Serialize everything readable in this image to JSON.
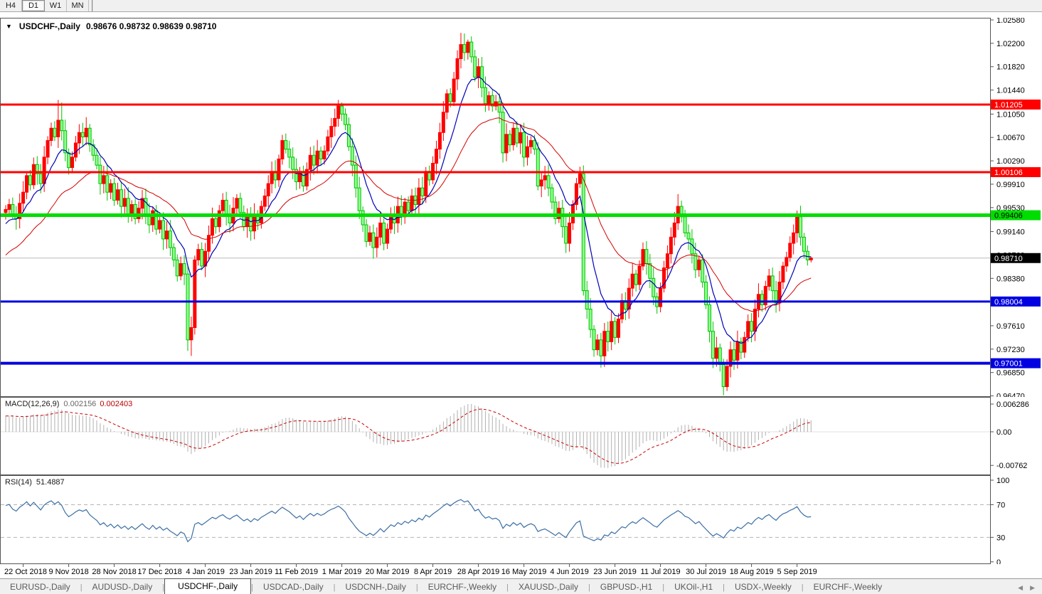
{
  "toolbar": {
    "timeframes": [
      "H4",
      "D1",
      "W1",
      "MN"
    ],
    "active_timeframe": "D1"
  },
  "chart": {
    "symbol_title": "USDCHF-,Daily",
    "ohlc": "0.98676 0.98732 0.98639 0.98710",
    "colors": {
      "bull_body": "#ff0000",
      "bear_fill": "#8cff8c",
      "bear_border": "#00c400",
      "ma_fast": "#0000b8",
      "ma_slow": "#d40000",
      "level_red": "#ff0000",
      "level_green": "#00dd00",
      "level_blue": "#0000e0",
      "price_line_gray": "#bbbbbb",
      "macd_hist": "#b0b0b0",
      "macd_signal": "#cc0000",
      "rsi_line": "#3a6ea5"
    },
    "price_axis_ticks": [
      "1.02580",
      "1.02200",
      "1.01820",
      "1.01440",
      "1.01050",
      "1.00670",
      "1.00290",
      "0.99910",
      "0.99530",
      "0.99140",
      "0.98760",
      "0.98380",
      "0.98000",
      "0.97610",
      "0.97230",
      "0.96850",
      "0.96470"
    ],
    "levels": [
      {
        "value": 1.01205,
        "label": "1.01205",
        "color": "red",
        "thickness": 3
      },
      {
        "value": 1.00106,
        "label": "1.00106",
        "color": "red",
        "thickness": 3
      },
      {
        "value": 0.99406,
        "label": "0.99406",
        "color": "green",
        "thickness": 5
      },
      {
        "value": 0.98004,
        "label": "0.98004",
        "color": "blue",
        "thickness": 3
      },
      {
        "value": 0.97001,
        "label": "0.97001",
        "color": "blue",
        "thickness": 4
      }
    ],
    "current_price": {
      "value": 0.9871,
      "label": "0.98710"
    },
    "date_labels": [
      "22 Oct 2018",
      "9 Nov 2018",
      "28 Nov 2018",
      "17 Dec 2018",
      "4 Jan 2019",
      "23 Jan 2019",
      "11 Feb 2019",
      "1 Mar 2019",
      "20 Mar 2019",
      "8 Apr 2019",
      "28 Apr 2019",
      "16 May 2019",
      "4 Jun 2019",
      "23 Jun 2019",
      "11 Jul 2019",
      "30 Jul 2019",
      "18 Aug 2019",
      "5 Sep 2019"
    ]
  },
  "chart_data": {
    "type": "candlestick",
    "symbol": "USDCHF",
    "timeframe": "Daily",
    "first_open": 0.9945,
    "closes": [
      0.995,
      0.9958,
      0.9942,
      0.9935,
      0.996,
      0.9978,
      1.0005,
      0.999,
      1.0023,
      1.0008,
      0.9992,
      1.0035,
      1.0062,
      1.0082,
      1.0068,
      1.0095,
      1.0078,
      1.0042,
      1.0018,
      1.0035,
      1.0058,
      1.0075,
      1.0068,
      1.0082,
      1.0055,
      1.0038,
      1.0022,
      0.9992,
      1.0005,
      0.9978,
      0.9992,
      0.9965,
      0.9982,
      0.9955,
      0.9968,
      0.9942,
      0.9958,
      0.9935,
      0.9952,
      0.9968,
      0.9942,
      0.9925,
      0.9948,
      0.9918,
      0.9932,
      0.9902,
      0.9915,
      0.9888,
      0.9868,
      0.9842,
      0.9862,
      0.9845,
      0.9738,
      0.9758,
      0.9868,
      0.9885,
      0.9858,
      0.9882,
      0.9908,
      0.9935,
      0.9922,
      0.9948,
      0.9965,
      0.9942,
      0.9928,
      0.9952,
      0.9968,
      0.9945,
      0.9922,
      0.9938,
      0.9915,
      0.9942,
      0.9928,
      0.9955,
      0.9972,
      0.9992,
      1.0012,
      0.9998,
      1.0032,
      1.0062,
      1.0048,
      1.0035,
      1.0015,
      0.9995,
      1.0012,
      0.9988,
      1.0015,
      1.0038,
      1.0022,
      1.0045,
      1.0032,
      1.0045,
      1.0068,
      1.0085,
      1.0098,
      1.0118,
      1.0105,
      1.0088,
      1.0052,
      1.0022,
      0.9985,
      0.9948,
      0.9925,
      0.9898,
      0.9912,
      0.9888,
      0.9905,
      0.9928,
      0.9895,
      0.9918,
      0.9942,
      0.9928,
      0.9955,
      0.9938,
      0.9962,
      0.9948,
      0.9972,
      0.9958,
      0.9985,
      0.9972,
      1.0012,
      0.9998,
      1.0025,
      1.0048,
      1.0075,
      1.0108,
      1.0138,
      1.0125,
      1.0162,
      1.0195,
      1.0218,
      1.0205,
      1.0222,
      1.0198,
      1.0165,
      1.0182,
      1.0148,
      1.0122,
      1.0135,
      1.0118,
      1.0125,
      1.0108,
      1.0042,
      1.0072,
      1.0055,
      1.0082,
      1.0058,
      1.0075,
      1.0035,
      1.0052,
      1.0062,
      1.0048,
      0.9988,
      0.9998,
      1.0005,
      0.9985,
      0.9962,
      0.9935,
      0.9952,
      0.9922,
      0.9895,
      0.9928,
      0.9958,
      0.9992,
      1.0008,
      0.9818,
      0.9788,
      0.9755,
      0.9722,
      0.9738,
      0.9712,
      0.9752,
      0.9735,
      0.9768,
      0.9742,
      0.9772,
      0.9802,
      0.9788,
      0.9822,
      0.9845,
      0.9828,
      0.9858,
      0.9885,
      0.9862,
      0.9838,
      0.9808,
      0.9792,
      0.9822,
      0.9855,
      0.9878,
      0.9905,
      0.9928,
      0.9955,
      0.9938,
      0.9912,
      0.9902,
      0.9878,
      0.9852,
      0.9868,
      0.9832,
      0.9795,
      0.9752,
      0.9708,
      0.9725,
      0.9698,
      0.9662,
      0.9695,
      0.9722,
      0.9705,
      0.9735,
      0.9718,
      0.9742,
      0.9768,
      0.9752,
      0.9788,
      0.9812,
      0.9795,
      0.9825,
      0.9842,
      0.9818,
      0.9798,
      0.9832,
      0.9858,
      0.9872,
      0.9895,
      0.9912,
      0.9938,
      0.9905,
      0.9882,
      0.9868,
      0.9871
    ],
    "wick_overrides": {
      "15": [
        1.0128,
        null
      ],
      "16": [
        1.0124,
        null
      ],
      "52": [
        null,
        0.972
      ],
      "53": [
        null,
        0.9712
      ],
      "95": [
        1.0128,
        null
      ],
      "96": [
        1.0124,
        null
      ],
      "130": [
        1.0237,
        null
      ],
      "132": [
        1.0226,
        null
      ],
      "165": [
        null,
        0.981
      ],
      "170": [
        null,
        0.9693
      ],
      "192": [
        0.9975,
        null
      ],
      "205": [
        null,
        0.9648
      ],
      "226": [
        0.9948,
        null
      ],
      "230": [
        0.98732,
        0.98639
      ]
    },
    "indicators": {
      "ma_fast_period": 10,
      "ma_slow_period": 30,
      "macd_params": [
        12,
        26,
        9
      ],
      "rsi_period": 14
    }
  },
  "macd_panel": {
    "label": "MACD(12,26,9)",
    "value_main": "0.002156",
    "value_signal": "0.002403",
    "axis_labels": [
      "0.006286",
      "0.00",
      "-0.00762"
    ],
    "axis_values": [
      0.006286,
      0,
      -0.00762
    ]
  },
  "rsi_panel": {
    "label": "RSI(14)",
    "value": "51.4887",
    "axis_labels": [
      "100",
      "70",
      "30",
      "0"
    ],
    "axis_values": [
      100,
      70,
      30,
      0
    ],
    "guide_levels": [
      70,
      30
    ]
  },
  "tabs": {
    "items": [
      "EURUSD-,Daily",
      "AUDUSD-,Daily",
      "USDCHF-,Daily",
      "USDCAD-,Daily",
      "USDCNH-,Daily",
      "EURCHF-,Weekly",
      "XAUUSD-,Daily",
      "GBPUSD-,H1",
      "UKOil-,H1",
      "USDX-,Weekly",
      "EURCHF-,Weekly"
    ],
    "active_index": 2,
    "scroll_left_icon": "◀",
    "scroll_right_icon": "▶"
  }
}
